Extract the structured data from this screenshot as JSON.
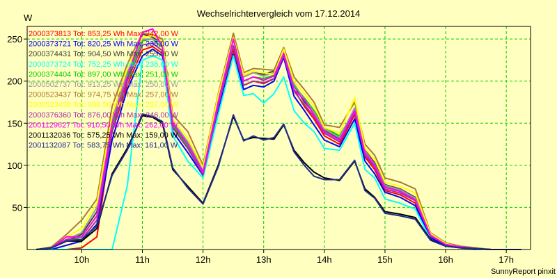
{
  "chart_data": {
    "type": "line",
    "title": "Wechselrichtervergleich vom 17.12.2014",
    "ylabel": "W",
    "xlabel": "",
    "ylim": [
      0,
      265
    ],
    "xlim": [
      9.1,
      17.4
    ],
    "grid": true,
    "legend_position": "top-left",
    "x_ticks": [
      10,
      11,
      12,
      13,
      14,
      15,
      16,
      17
    ],
    "x_tick_labels": [
      "10h",
      "11h",
      "12h",
      "13h",
      "14h",
      "15h",
      "16h",
      "17h"
    ],
    "y_ticks": [
      50,
      100,
      150,
      200,
      250
    ],
    "y_tick_labels": [
      "50",
      "100",
      "150",
      "200",
      "250"
    ],
    "x": [
      9.25,
      9.5,
      9.75,
      10.0,
      10.25,
      10.5,
      10.75,
      11.0,
      11.17,
      11.33,
      11.5,
      11.75,
      12.0,
      12.25,
      12.5,
      12.67,
      12.83,
      13.0,
      13.17,
      13.33,
      13.5,
      13.67,
      13.83,
      14.0,
      14.25,
      14.5,
      14.67,
      14.83,
      15.0,
      15.25,
      15.5,
      15.75,
      16.0,
      16.25,
      16.5,
      16.75,
      17.0,
      17.25
    ],
    "series": [
      {
        "name": "2000373813 Tot: 853,25 Wh Max: 242,00 W",
        "color": "#FF0000",
        "values": [
          0,
          0,
          0,
          2,
          15,
          140,
          195,
          237,
          241,
          233,
          145,
          120,
          90,
          170,
          237,
          195,
          200,
          197,
          203,
          232,
          190,
          170,
          155,
          135,
          125,
          160,
          110,
          95,
          70,
          65,
          55,
          15,
          5,
          2,
          0,
          0,
          0,
          0
        ]
      },
      {
        "name": "2000373721 Tot: 820,25 Wh Max: 235,00 W",
        "color": "#0000FF",
        "values": [
          0,
          0,
          5,
          10,
          30,
          130,
          190,
          230,
          238,
          230,
          140,
          115,
          88,
          165,
          232,
          190,
          195,
          193,
          200,
          228,
          182,
          165,
          148,
          130,
          122,
          155,
          105,
          90,
          68,
          62,
          52,
          14,
          5,
          2,
          0,
          0,
          0,
          0
        ]
      },
      {
        "name": "2000374431 Tot: 904,50 Wh Max: 255,00 W",
        "color": "#404040",
        "values": [
          0,
          2,
          10,
          18,
          45,
          150,
          200,
          256,
          252,
          245,
          150,
          125,
          92,
          178,
          254,
          205,
          210,
          208,
          212,
          237,
          195,
          175,
          162,
          142,
          132,
          168,
          118,
          103,
          77,
          72,
          62,
          17,
          6,
          3,
          1,
          0,
          0,
          0
        ]
      },
      {
        "name": "2000373724 Tot: 752,25 Wh Max: 236,00 W",
        "color": "#00FFFF",
        "values": [
          0,
          0,
          0,
          0,
          0,
          0,
          75,
          225,
          230,
          225,
          135,
          105,
          85,
          160,
          230,
          183,
          185,
          174,
          185,
          205,
          165,
          150,
          140,
          120,
          118,
          150,
          95,
          85,
          60,
          55,
          48,
          12,
          4,
          2,
          0,
          0,
          0,
          0
        ]
      },
      {
        "name": "2000374404 Tot: 897,00 Wh Max: 251,00 W",
        "color": "#00CC00",
        "values": [
          0,
          2,
          10,
          15,
          40,
          145,
          205,
          248,
          250,
          240,
          148,
          122,
          90,
          175,
          250,
          200,
          205,
          203,
          207,
          233,
          195,
          180,
          165,
          145,
          135,
          165,
          115,
          100,
          75,
          70,
          60,
          17,
          6,
          3,
          1,
          0,
          0,
          0
        ]
      },
      {
        "name": "2000502737 Tot: 913,25 Wh Max: 250,00 W",
        "color": "#999999",
        "values": [
          0,
          2,
          12,
          20,
          50,
          155,
          210,
          250,
          250,
          245,
          152,
          128,
          95,
          180,
          250,
          205,
          210,
          206,
          210,
          235,
          197,
          178,
          163,
          143,
          133,
          168,
          117,
          101,
          76,
          71,
          61,
          18,
          6,
          3,
          1,
          0,
          0,
          0
        ]
      },
      {
        "name": "2000523437 Tot: 974,75 Wh Max: 257,00 W",
        "color": "#B07830",
        "values": [
          0,
          3,
          18,
          35,
          60,
          170,
          220,
          257,
          255,
          250,
          160,
          140,
          100,
          185,
          257,
          210,
          215,
          214,
          213,
          240,
          205,
          190,
          175,
          148,
          145,
          175,
          125,
          112,
          85,
          80,
          72,
          20,
          8,
          4,
          2,
          0,
          0,
          0
        ]
      },
      {
        "name": "2000523438 Tot: 936,50 Wh Max: 257,00 W",
        "color": "#FFFF00",
        "values": [
          0,
          2,
          15,
          25,
          55,
          160,
          215,
          252,
          254,
          247,
          155,
          132,
          97,
          183,
          252,
          207,
          212,
          210,
          208,
          238,
          200,
          185,
          170,
          145,
          138,
          180,
          120,
          107,
          80,
          75,
          67,
          19,
          7,
          3,
          1,
          0,
          0,
          0
        ]
      },
      {
        "name": "2000376360 Tot: 876,00 Wh Max: 246,00 W",
        "color": "#A030A0",
        "values": [
          0,
          2,
          12,
          12,
          35,
          140,
          200,
          243,
          245,
          236,
          145,
          120,
          89,
          170,
          242,
          195,
          200,
          198,
          203,
          230,
          188,
          172,
          158,
          138,
          128,
          163,
          112,
          98,
          72,
          67,
          58,
          16,
          6,
          3,
          1,
          0,
          0,
          0
        ]
      },
      {
        "name": "2001129627 Tot: 910,50 Wh Max: 262,00 W",
        "color": "#FF00FF",
        "values": [
          0,
          2,
          15,
          15,
          40,
          150,
          205,
          258,
          262,
          240,
          150,
          125,
          92,
          175,
          250,
          200,
          205,
          201,
          206,
          233,
          190,
          178,
          160,
          140,
          130,
          165,
          115,
          100,
          74,
          69,
          59,
          17,
          6,
          3,
          1,
          0,
          0,
          0
        ]
      },
      {
        "name": "2001132036 Tot: 575,25 Wh Max: 159,00 W",
        "color": "#000000",
        "values": [
          0,
          2,
          10,
          10,
          25,
          90,
          120,
          159,
          157,
          150,
          95,
          75,
          55,
          100,
          158,
          130,
          133,
          132,
          131,
          148,
          118,
          103,
          92,
          85,
          82,
          105,
          72,
          62,
          45,
          42,
          38,
          12,
          4,
          2,
          1,
          0,
          0,
          0
        ]
      },
      {
        "name": "2001132087 Tot: 583,75 Wh Max: 161,00 W",
        "color": "#1E2D8C",
        "values": [
          0,
          2,
          10,
          12,
          28,
          88,
          118,
          161,
          158,
          152,
          97,
          73,
          54,
          98,
          160,
          129,
          135,
          130,
          133,
          149,
          116,
          100,
          87,
          83,
          83,
          106,
          70,
          61,
          43,
          40,
          36,
          11,
          4,
          2,
          1,
          0,
          0,
          0
        ]
      }
    ]
  },
  "unit_label": "W",
  "footer": "SunnyReport pinxit",
  "colors": {
    "background": "#FFFFC0",
    "plot_background": "#FFFFC0",
    "grid": "#00CC00"
  }
}
